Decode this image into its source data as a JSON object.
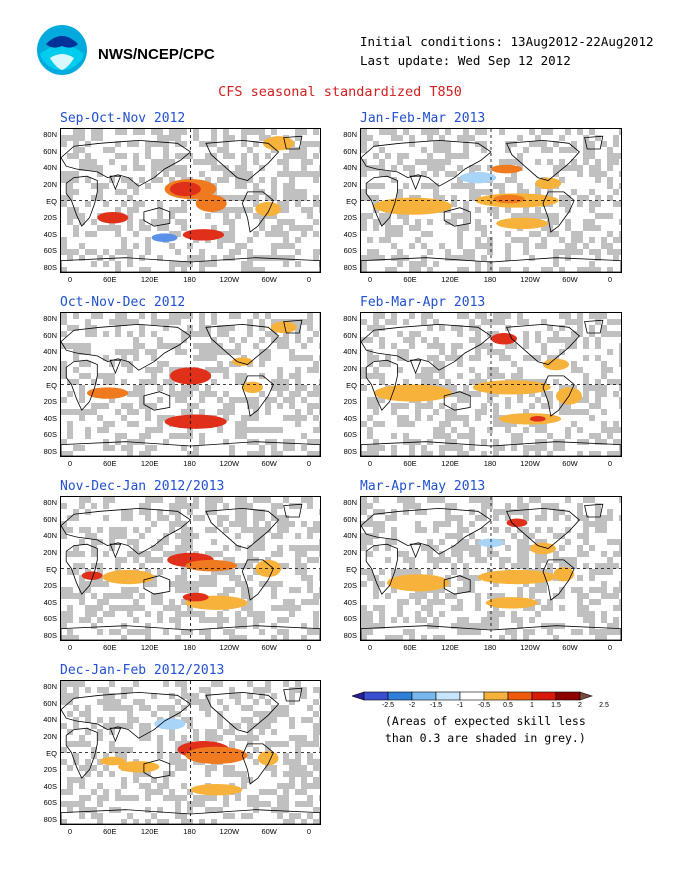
{
  "header": {
    "agency": "NWS/NCEP/CPC",
    "initial_conditions": "Initial conditions: 13Aug2012-22Aug2012",
    "last_update": "Last update: Wed Sep 12 2012",
    "title": "CFS seasonal standardized T850"
  },
  "logo": {
    "icon": "noaa-logo",
    "colors": {
      "outer": "#00aadd",
      "inner": "#003399"
    }
  },
  "axes": {
    "lat_labels": [
      "80N",
      "60N",
      "40N",
      "20N",
      "EQ",
      "20S",
      "40S",
      "60S",
      "80S"
    ],
    "lon_labels": [
      "0",
      "60E",
      "120E",
      "180",
      "120W",
      "60W",
      "0"
    ]
  },
  "panels": [
    {
      "title": "Sep-Oct-Nov 2012"
    },
    {
      "title": "Jan-Feb-Mar 2013"
    },
    {
      "title": "Oct-Nov-Dec 2012"
    },
    {
      "title": "Feb-Mar-Apr 2013"
    },
    {
      "title": "Nov-Dec-Jan 2012/2013"
    },
    {
      "title": "Mar-Apr-May 2013"
    },
    {
      "title": "Dec-Jan-Feb 2012/2013"
    }
  ],
  "colorbar": {
    "labels": [
      "-2.5",
      "-2",
      "-1.5",
      "-1",
      "-0.5",
      "0.5",
      "1",
      "1.5",
      "2",
      "2.5"
    ],
    "colors": [
      "#2a1e9e",
      "#3a4fcf",
      "#2f7fd8",
      "#78b8ee",
      "#c8e4fb",
      "#ffffff",
      "#f7b23c",
      "#ef5a0f",
      "#d81a0a",
      "#8c0000",
      "#7a4a3e"
    ]
  },
  "note": {
    "line1": "(Areas of expected skill less",
    "line2": "than 0.3 are shaded in grey.)"
  },
  "shading_colors": {
    "grey": "#c0c0c0",
    "light_orange": "#f7b23c",
    "orange": "#ef7a1f",
    "red": "#e0301a",
    "light_blue": "#a8d4f8",
    "blue": "#5a90e8"
  }
}
